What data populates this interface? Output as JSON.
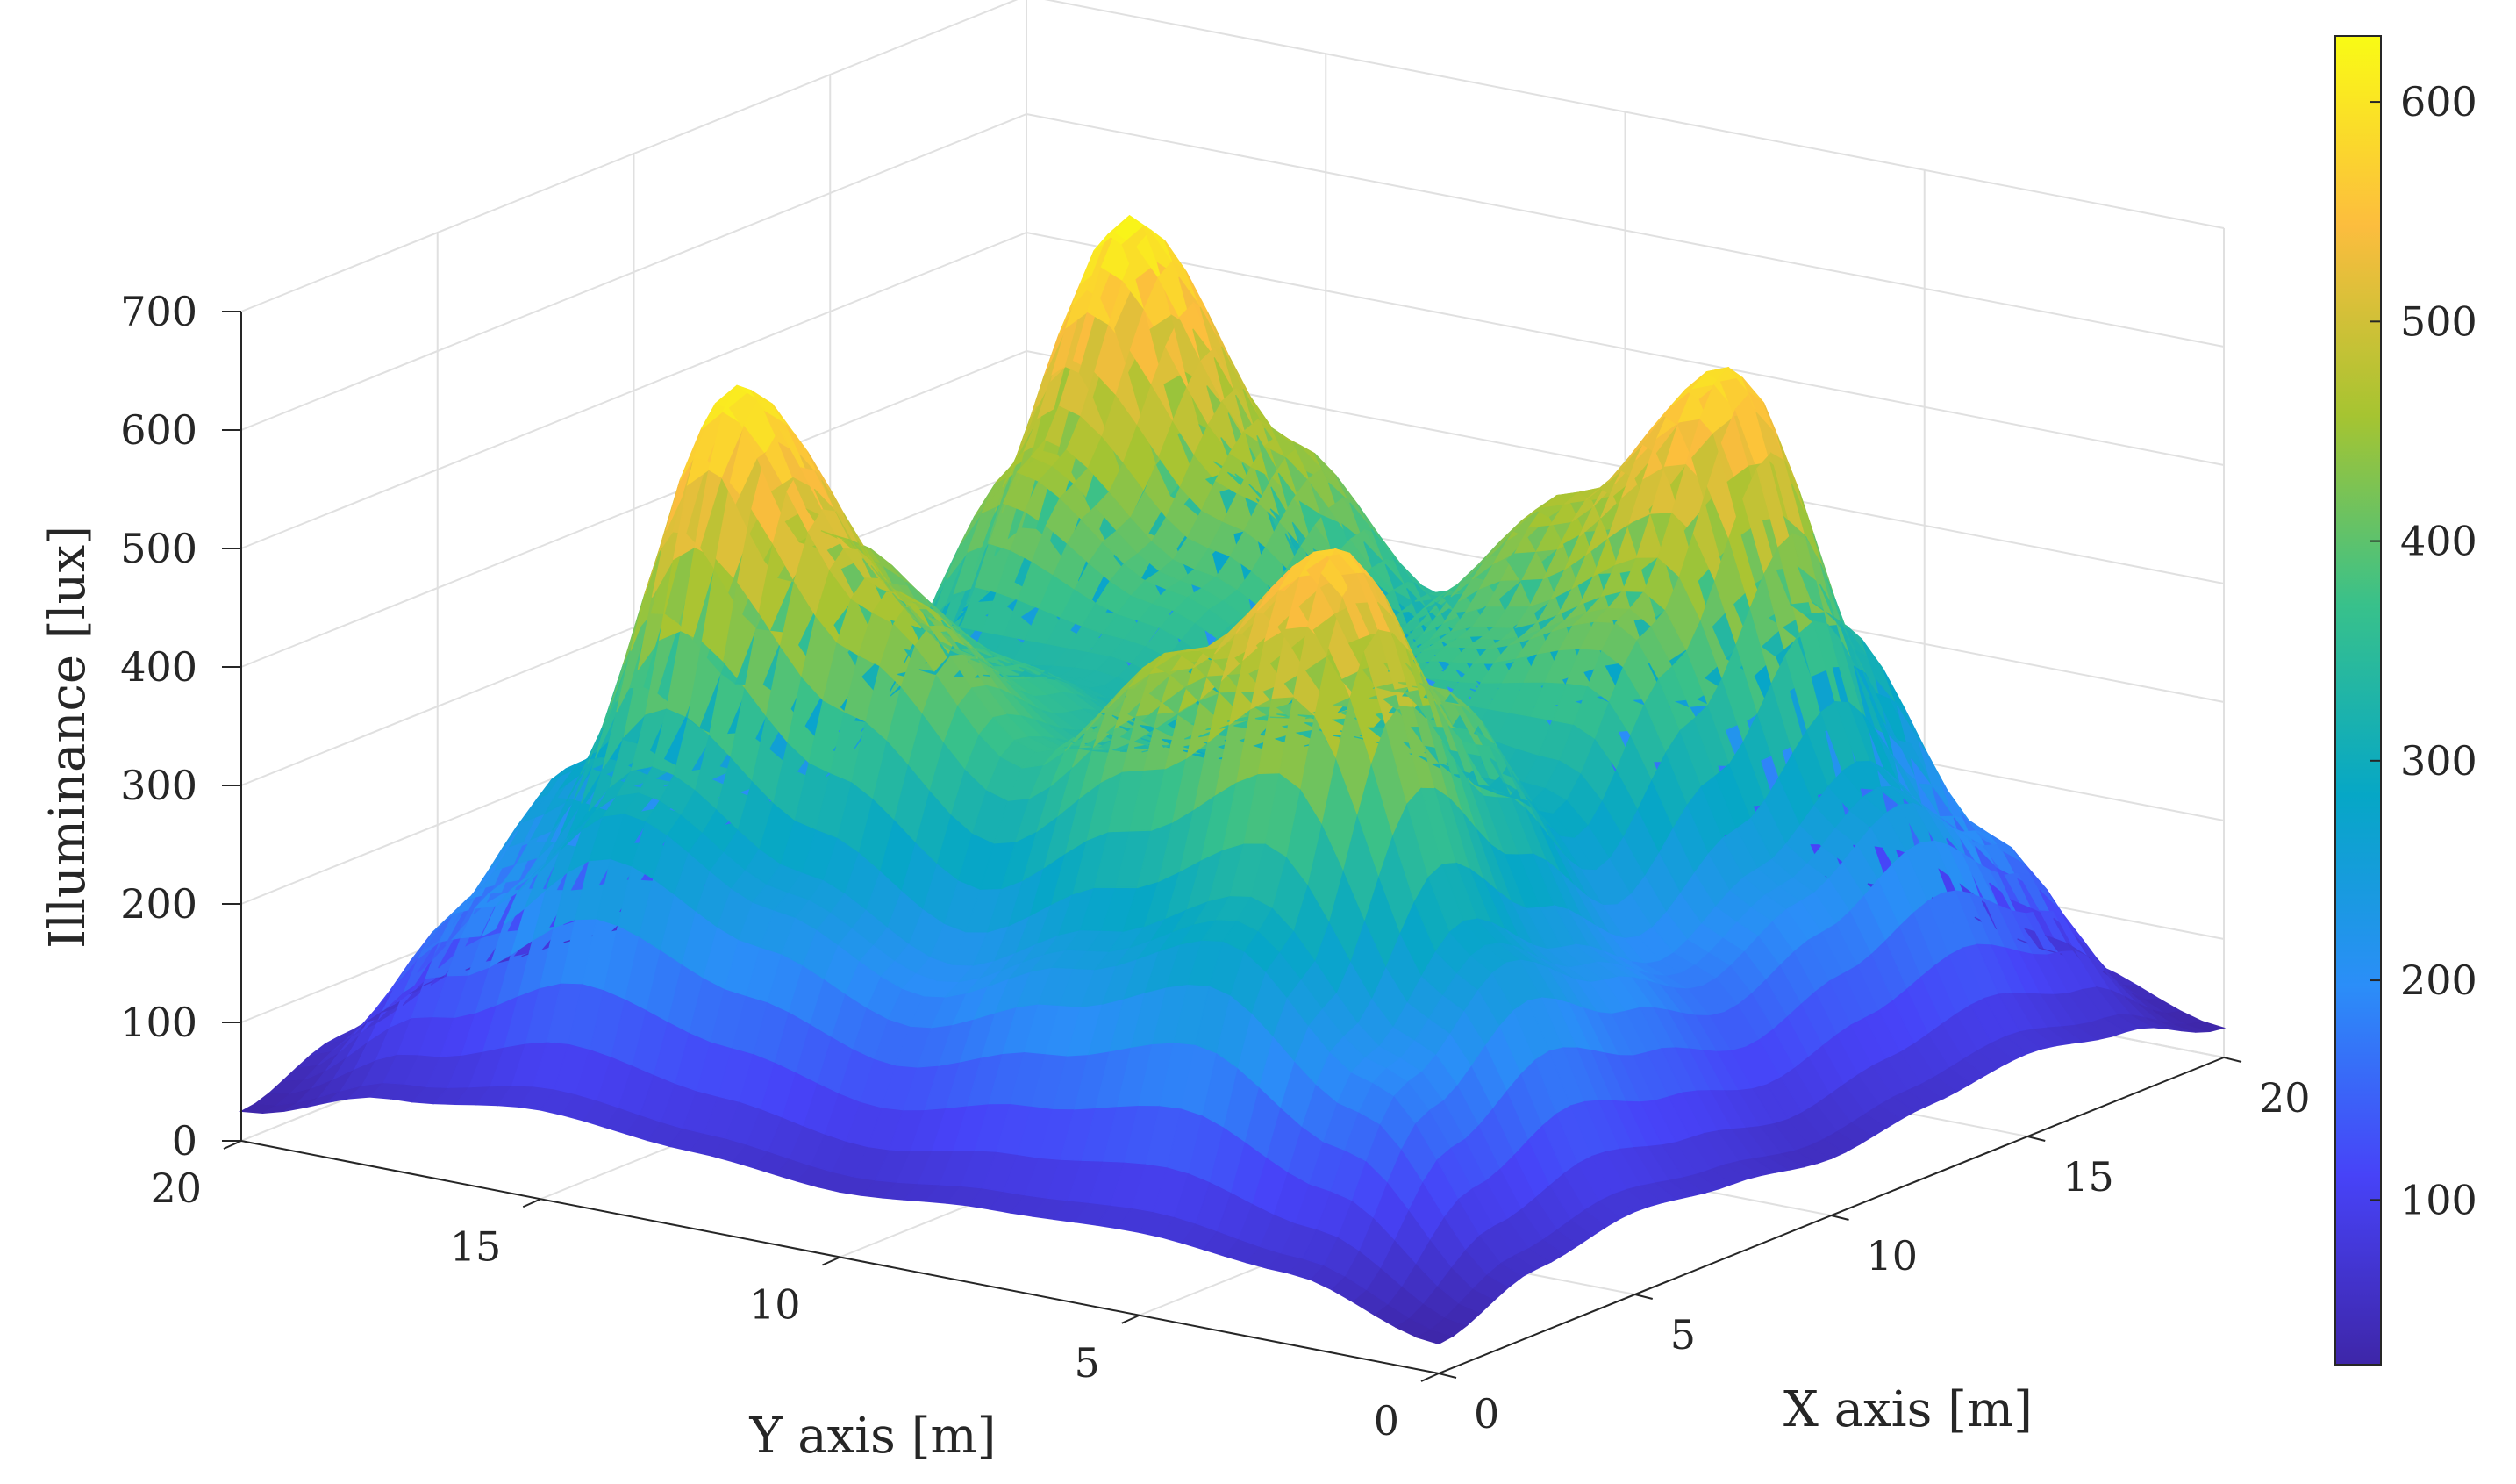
{
  "chart_data": {
    "type": "surface",
    "title": "",
    "xlabel": "X axis [m]",
    "ylabel": "Y axis [m]",
    "zlabel": "Illuminance [lux]",
    "xlim": [
      0,
      20
    ],
    "ylim": [
      0,
      20
    ],
    "zlim": [
      0,
      700
    ],
    "x_ticks": [
      "0",
      "5",
      "10",
      "15",
      "20"
    ],
    "y_ticks": [
      "0",
      "5",
      "10",
      "15",
      "20"
    ],
    "z_ticks": [
      "0",
      "100",
      "200",
      "300",
      "400",
      "500",
      "600",
      "700"
    ],
    "colorbar": {
      "colormap": "parula",
      "range": [
        25,
        630
      ],
      "ticks": [
        "100",
        "200",
        "300",
        "400",
        "500",
        "600"
      ]
    },
    "grid": true,
    "colors": [
      "#3e26a8",
      "#4743f8",
      "#2b8ef8",
      "#06a7c6",
      "#38c18b",
      "#a6c431",
      "#fcbd3e",
      "#f9fb15"
    ],
    "series": [
      {
        "x": [
          0,
          2.5,
          5,
          7.5,
          10,
          12.5,
          15,
          17.5,
          20
        ],
        "y": [
          0,
          2.5,
          5,
          7.5,
          10,
          12.5,
          15,
          17.5,
          20
        ],
        "z": [
          [
            25,
            55,
            70,
            60,
            48,
            60,
            70,
            55,
            25
          ],
          [
            60,
            200,
            270,
            220,
            180,
            220,
            270,
            200,
            60
          ],
          [
            70,
            300,
            580,
            430,
            300,
            430,
            600,
            360,
            80
          ],
          [
            65,
            250,
            470,
            380,
            330,
            380,
            470,
            260,
            85
          ],
          [
            55,
            200,
            360,
            330,
            290,
            330,
            360,
            230,
            85
          ],
          [
            65,
            250,
            470,
            380,
            330,
            380,
            470,
            260,
            85
          ],
          [
            75,
            310,
            620,
            460,
            310,
            460,
            630,
            380,
            90
          ],
          [
            60,
            200,
            280,
            230,
            180,
            230,
            280,
            210,
            65
          ],
          [
            25,
            55,
            70,
            60,
            50,
            60,
            70,
            55,
            30
          ]
        ]
      }
    ]
  }
}
